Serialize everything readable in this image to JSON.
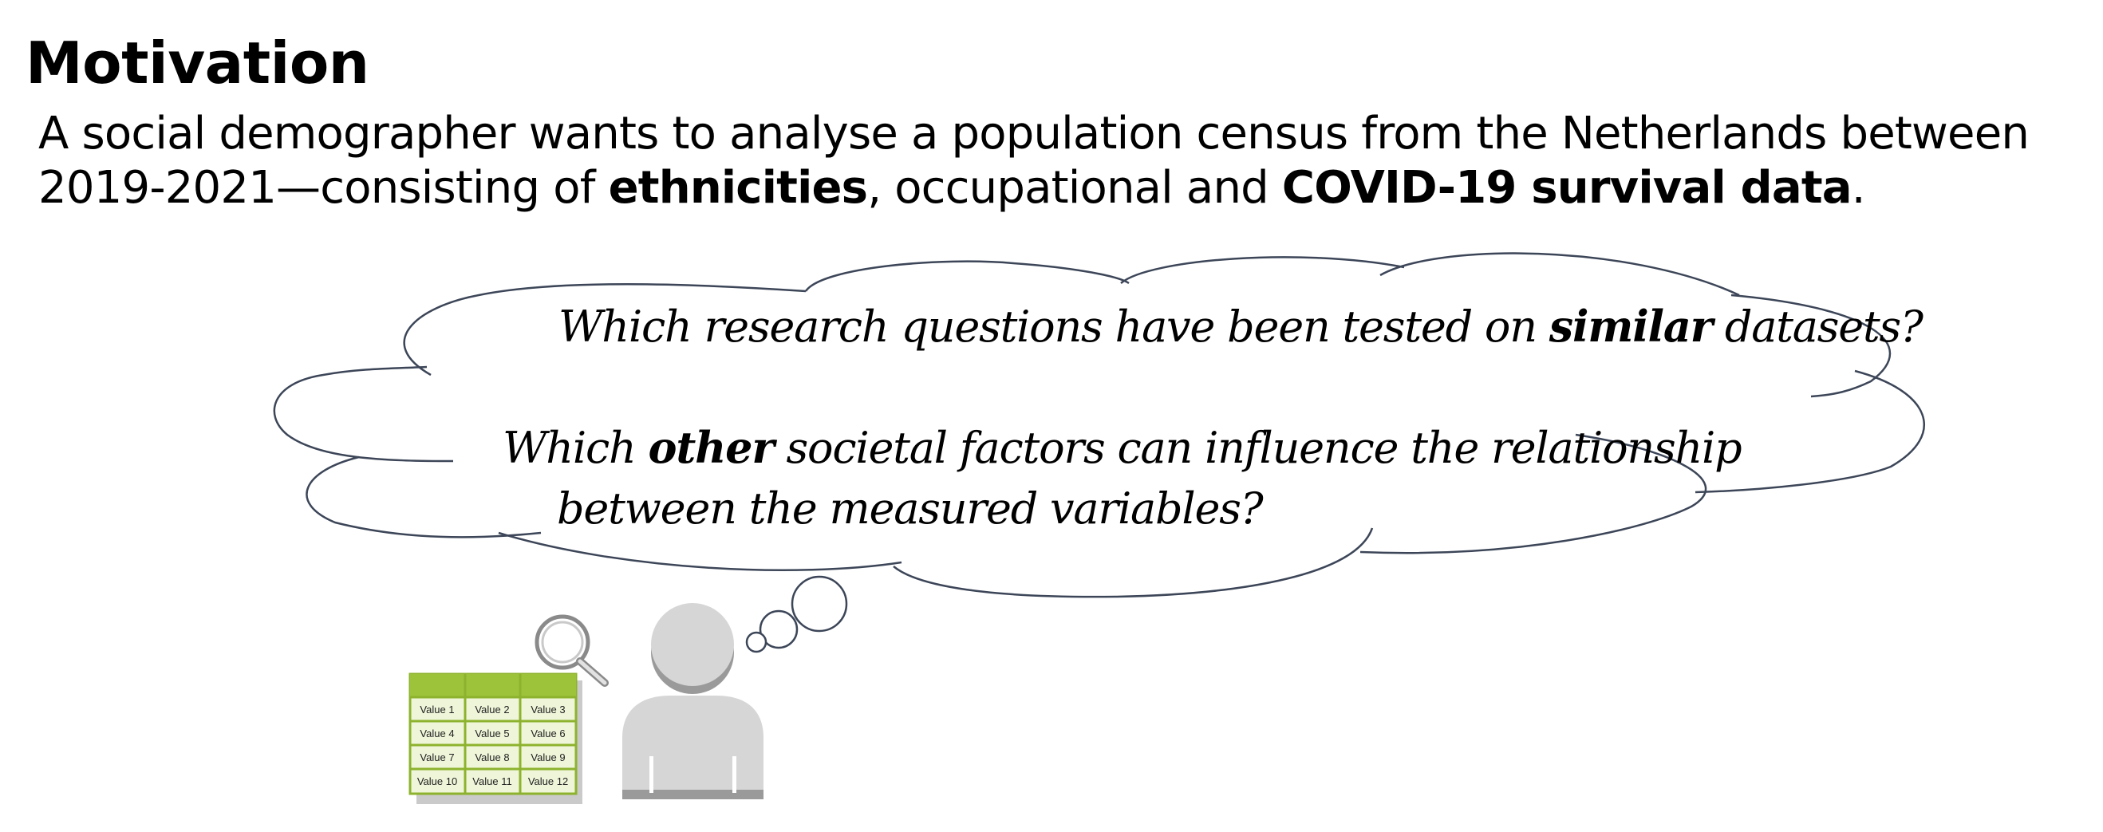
{
  "slide": {
    "title": "Motivation",
    "intro": {
      "line1_a": "A social demographer wants to analyse a population census from the Netherlands between",
      "line2_a": "2019-2021—consisting of ",
      "line2_b_bold": "ethnicities",
      "line2_c": ", occupational and ",
      "line2_d_bold": "COVID-19 survival data",
      "line2_e": "."
    }
  },
  "thought_bubble": {
    "question1": {
      "before": "Which research questions have been tested on ",
      "emphasis": "similar",
      "after": " datasets?"
    },
    "question2": {
      "line1_before": "Which ",
      "line1_emphasis": "other",
      "line1_after": " societal factors can influence the relationship",
      "line2": "between the measured variables?"
    }
  },
  "data_table": {
    "cells": [
      [
        "Value 1",
        "Value 2",
        "Value 3"
      ],
      [
        "Value 4",
        "Value 5",
        "Value 6"
      ],
      [
        "Value 7",
        "Value 8",
        "Value 9"
      ],
      [
        "Value 10",
        "Value 11",
        "Value 12"
      ]
    ]
  },
  "icons": {
    "magnifier": "magnifying-glass-icon",
    "person": "person-icon"
  },
  "colors": {
    "table_header": "#9dc33b",
    "table_border": "#8db32e",
    "table_cell": "#eef5d8",
    "person": "#d6d6d6",
    "person_shadow": "#9a9a9a",
    "cloud_stroke": "#3c4658"
  }
}
